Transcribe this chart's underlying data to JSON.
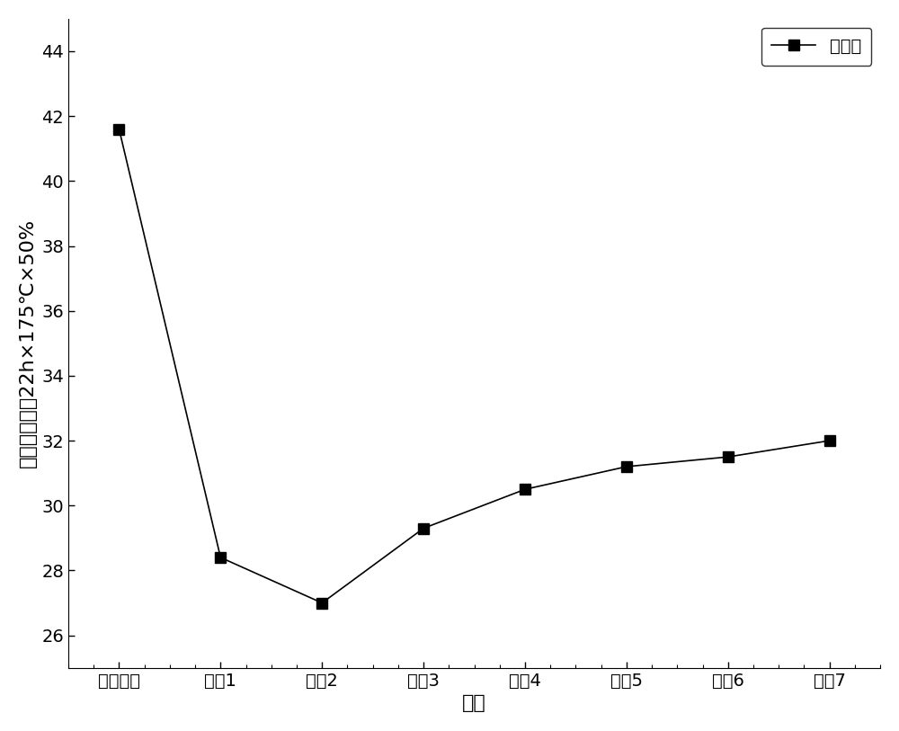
{
  "x_labels": [
    "对比实例",
    "实例1",
    "实例2",
    "实例3",
    "实例4",
    "实例5",
    "实例6",
    "实例7"
  ],
  "y_values": [
    41.6,
    28.4,
    27.0,
    29.3,
    30.5,
    31.2,
    31.5,
    32.0
  ],
  "xlabel": "实例",
  "ylabel": "压缩永久变形22h×175℃×50%",
  "legend_label": "变形率",
  "ylim_min": 25,
  "ylim_max": 45,
  "yticks": [
    26,
    28,
    30,
    32,
    34,
    36,
    38,
    40,
    42,
    44
  ],
  "line_color": "#000000",
  "marker": "s",
  "marker_size": 8,
  "marker_color": "#000000",
  "line_width": 1.2,
  "label_fontsize": 16,
  "tick_fontsize": 14,
  "legend_fontsize": 14,
  "background_color": "#ffffff"
}
